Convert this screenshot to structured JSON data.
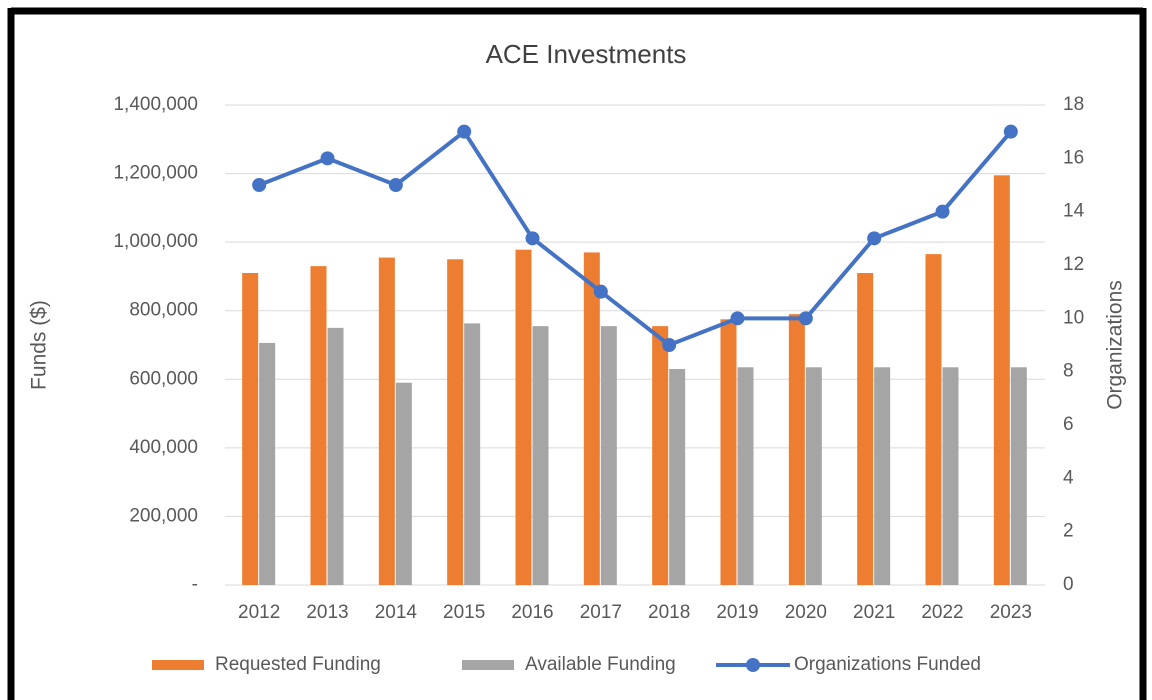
{
  "chart_data": {
    "type": "bar",
    "title": "ACE Investments",
    "y_label": "Funds ($)",
    "y2_label": "Organizations",
    "categories": [
      "2012",
      "2013",
      "2014",
      "2015",
      "2016",
      "2017",
      "2018",
      "2019",
      "2020",
      "2021",
      "2022",
      "2023"
    ],
    "series": [
      {
        "name": "Requested Funding",
        "color": "#ed7d31",
        "type": "bar",
        "values": [
          910000,
          930000,
          955000,
          950000,
          978000,
          970000,
          755000,
          775000,
          790000,
          910000,
          965000,
          1195000
        ]
      },
      {
        "name": "Available Funding",
        "color": "#a5a5a5",
        "type": "bar",
        "values": [
          706000,
          750000,
          590000,
          763000,
          755000,
          755000,
          630000,
          635000,
          635000,
          635000,
          635000,
          635000
        ]
      },
      {
        "name": "Organizations Funded",
        "color": "#4472c4",
        "type": "line",
        "axis": "y2",
        "values": [
          15,
          16,
          15,
          17,
          13,
          11,
          9,
          10,
          10,
          13,
          14,
          17
        ]
      }
    ],
    "ylim": [
      0,
      1400000
    ],
    "yticks": [
      {
        "value": 0,
        "label": "-"
      },
      {
        "value": 200000,
        "label": "200,000"
      },
      {
        "value": 400000,
        "label": "400,000"
      },
      {
        "value": 600000,
        "label": "600,000"
      },
      {
        "value": 800000,
        "label": "800,000"
      },
      {
        "value": 1000000,
        "label": "1,000,000"
      },
      {
        "value": 1200000,
        "label": "1,200,000"
      },
      {
        "value": 1400000,
        "label": "1,400,000"
      }
    ],
    "y2lim": [
      0,
      18
    ],
    "y2ticks": [
      0,
      2,
      4,
      6,
      8,
      10,
      12,
      14,
      16,
      18
    ],
    "grid": true,
    "legend": "bottom"
  }
}
